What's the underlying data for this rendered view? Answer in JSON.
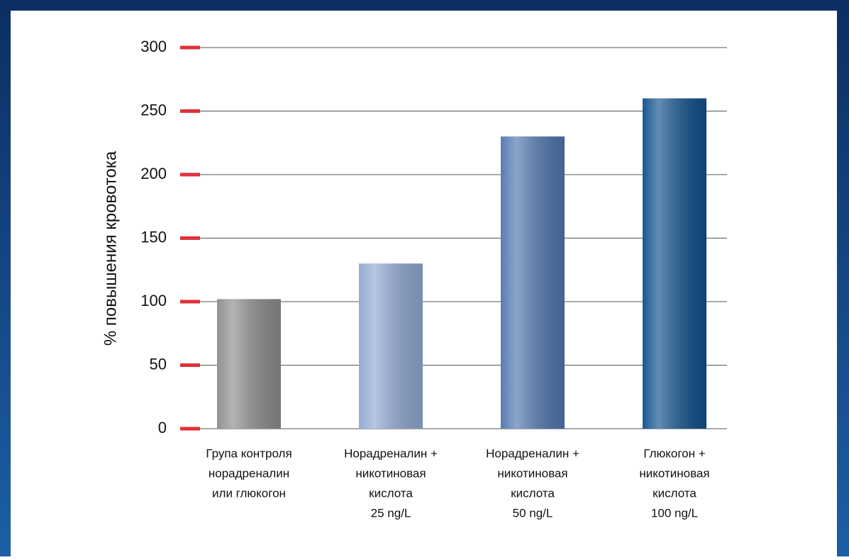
{
  "chart_data": {
    "type": "bar",
    "y_label": "% повышения кровотока",
    "categories": [
      [
        "Група контроля",
        "норадреналин",
        "или глюкогон"
      ],
      [
        "Норадреналин +",
        "никотиновая",
        "кислота",
        "25 ng/L"
      ],
      [
        "Норадреналин +",
        "никотиновая",
        "кислота",
        "50 ng/L"
      ],
      [
        "Глюкогон +",
        "никотиновая",
        "кислота",
        "100 ng/L"
      ]
    ],
    "values": [
      102,
      130,
      230,
      260
    ],
    "colors": [
      "#8c8c8c",
      "#8fa8d2",
      "#4f76ae",
      "#0f4f8c"
    ],
    "tick_color": "#e0303a",
    "ylim": [
      0,
      300
    ],
    "yticks": [
      0,
      50,
      100,
      150,
      200,
      250,
      300
    ],
    "grid": true
  }
}
